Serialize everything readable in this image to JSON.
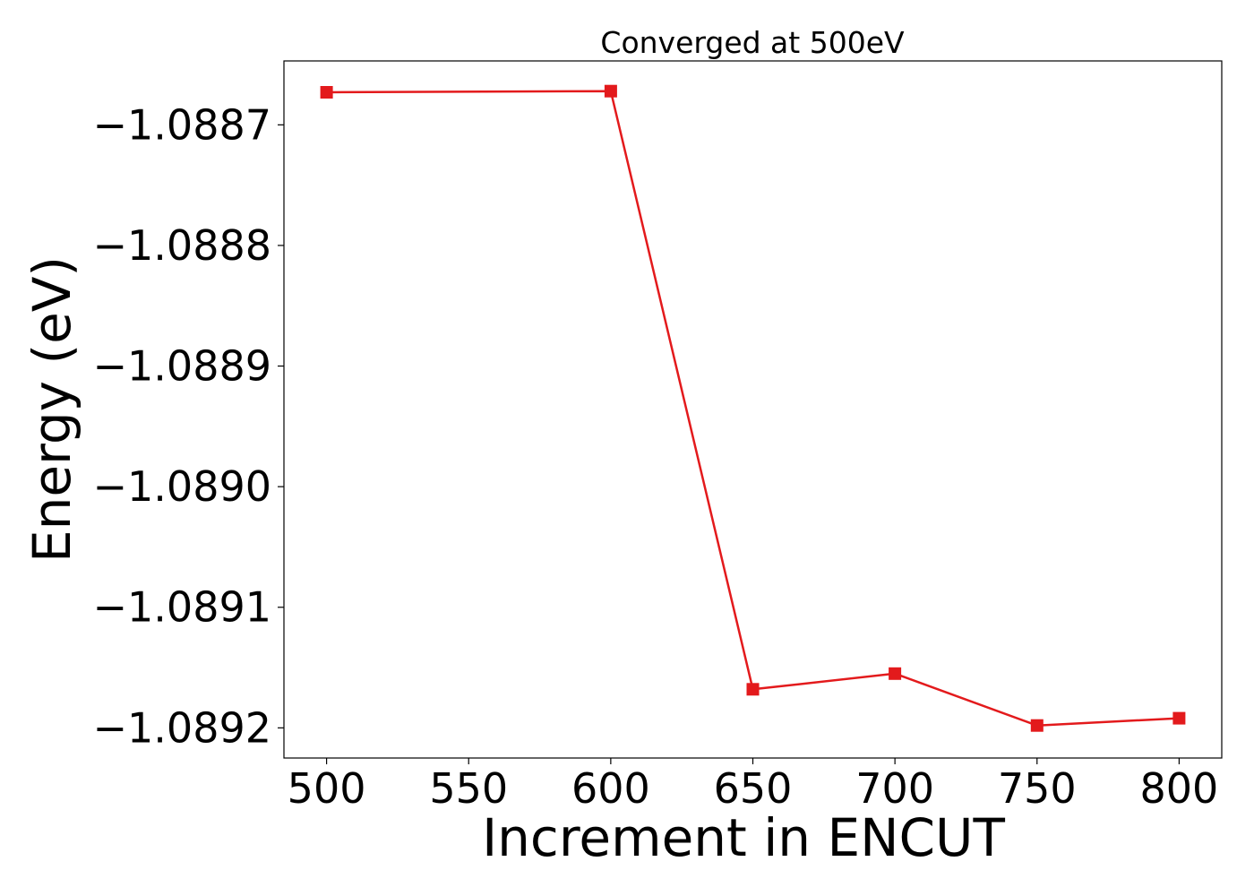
{
  "chart_data": {
    "type": "line",
    "title": "Converged at 500eV",
    "xlabel": "Increment in ENCUT",
    "ylabel": "Energy (eV)",
    "x": [
      500,
      600,
      650,
      700,
      750,
      800
    ],
    "series": [
      {
        "values": [
          -1.088673,
          -1.088672,
          -1.089168,
          -1.089155,
          -1.089198,
          -1.089192
        ]
      }
    ],
    "xlim": [
      485,
      815
    ],
    "ylim": [
      -1.089225,
      -1.088647
    ],
    "x_ticks": [
      500,
      550,
      600,
      650,
      700,
      750,
      800
    ],
    "x_tick_labels": [
      "500",
      "550",
      "600",
      "650",
      "700",
      "750",
      "800"
    ],
    "y_ticks": [
      -1.0887,
      -1.0888,
      -1.0889,
      -1.089,
      -1.0891,
      -1.0892
    ],
    "y_tick_labels": [
      "−1.0887",
      "−1.0888",
      "−1.0889",
      "−1.0890",
      "−1.0891",
      "−1.0892"
    ],
    "marker": "square",
    "grid": false,
    "colors": {
      "line": "#e31a1c",
      "marker": "#e31a1c",
      "axes": "#000000"
    }
  }
}
